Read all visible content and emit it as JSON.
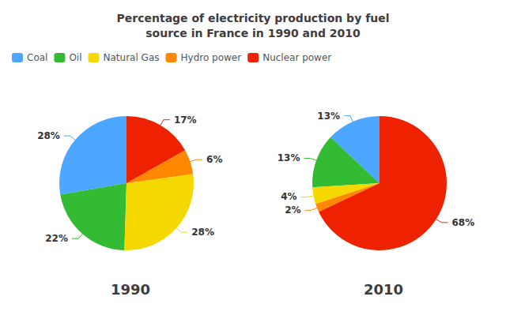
{
  "chart_data": {
    "type": "pie",
    "title": "Percentage of electricity production by fuel\nsource in France in 1990 and 2010",
    "categories": [
      "Coal",
      "Oil",
      "Natural Gas",
      "Hydro power",
      "Nuclear power"
    ],
    "colors": [
      "#4da6ff",
      "#33bb33",
      "#f5d800",
      "#ff8800",
      "#ee2200"
    ],
    "series": [
      {
        "name": "1990",
        "values": [
          28,
          22,
          28,
          6,
          17
        ],
        "value_labels": [
          "28%",
          "22%",
          "28%",
          "6%",
          "17%"
        ]
      },
      {
        "name": "2010",
        "values": [
          13,
          13,
          4,
          2,
          68
        ],
        "value_labels": [
          "13%",
          "13%",
          "4%",
          "2%",
          "68%"
        ]
      }
    ],
    "data_labels": true,
    "legend": "upper left"
  }
}
